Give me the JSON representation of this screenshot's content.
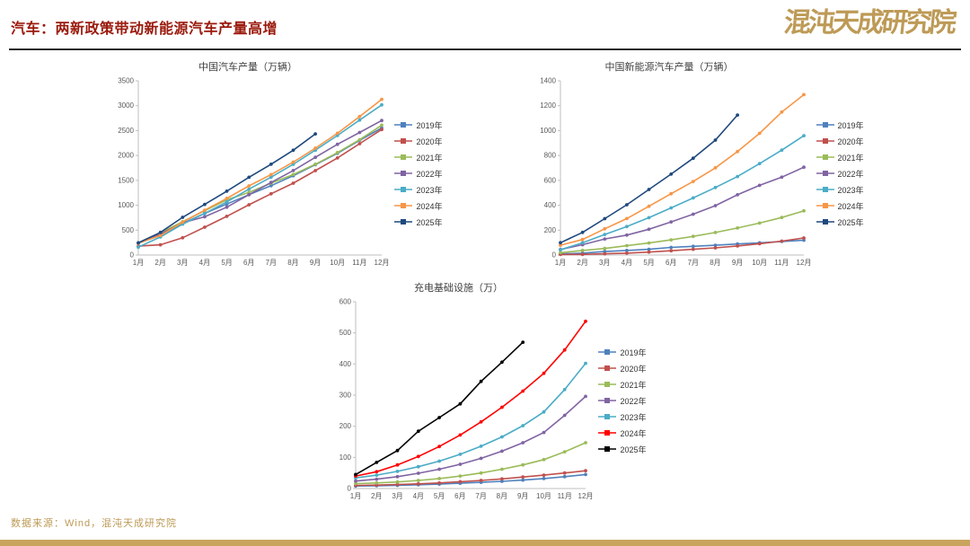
{
  "header": {
    "title": "汽车：两新政策带动新能源汽车产量高增",
    "logo": "混沌天成研究院"
  },
  "footer": {
    "source": "数据来源：Wind，混沌天成研究院"
  },
  "theme": {
    "title_red": "#9a1a0d",
    "accent_gold": "#bd9a56",
    "bottom_bar_gold": "#c9a45f"
  },
  "chart_data": [
    {
      "id": "china-auto-production",
      "type": "line",
      "title": "中国汽车产量（万辆）",
      "x": [
        "1月",
        "2月",
        "3月",
        "4月",
        "5月",
        "6月",
        "7月",
        "8月",
        "9月",
        "10月",
        "11月",
        "12月"
      ],
      "ylim": [
        0,
        3500
      ],
      "yticks": [
        0,
        500,
        1000,
        1500,
        2000,
        2500,
        3000,
        3500
      ],
      "grid": false,
      "legend_position": "right",
      "series": [
        {
          "name": "2019年",
          "color": "#4F81BD",
          "values": [
            236,
            395,
            633,
            838,
            1024,
            1213,
            1393,
            1593,
            1815,
            2044,
            2303,
            2553
          ]
        },
        {
          "name": "2020年",
          "color": "#C0504D",
          "values": [
            178,
            205,
            347,
            559,
            778,
            1011,
            1231,
            1443,
            1696,
            1951,
            2237,
            2523
          ]
        },
        {
          "name": "2021年",
          "color": "#9BBB59",
          "values": [
            238,
            445,
            669,
            892,
            1109,
            1257,
            1444,
            1617,
            1824,
            2058,
            2317,
            2608
          ]
        },
        {
          "name": "2022年",
          "color": "#8064A2",
          "values": [
            242,
            423,
            648,
            769,
            962,
            1212,
            1457,
            1697,
            1963,
            2224,
            2462,
            2702
          ]
        },
        {
          "name": "2023年",
          "color": "#4BACC6",
          "values": [
            159,
            362,
            621,
            835,
            1068,
            1325,
            1565,
            1822,
            2108,
            2401,
            2711,
            3016
          ]
        },
        {
          "name": "2024年",
          "color": "#F79646",
          "values": [
            241,
            391,
            660,
            901,
            1139,
            1389,
            1617,
            1867,
            2147,
            2446,
            2782,
            3128
          ]
        },
        {
          "name": "2025年",
          "color": "#1F497D",
          "values": [
            245,
            455,
            757,
            1018,
            1283,
            1562,
            1824,
            2106,
            2434
          ]
        }
      ]
    },
    {
      "id": "china-nev-production",
      "type": "line",
      "title": "中国新能源汽车产量（万辆）",
      "x": [
        "1月",
        "2月",
        "3月",
        "4月",
        "5月",
        "6月",
        "7月",
        "8月",
        "9月",
        "10月",
        "11月",
        "12月"
      ],
      "ylim": [
        0,
        1400
      ],
      "yticks": [
        0,
        200,
        400,
        600,
        800,
        1000,
        1200,
        1400
      ],
      "grid": false,
      "legend_position": "right",
      "series": [
        {
          "name": "2019年",
          "color": "#4F81BD",
          "values": [
            9,
            15,
            28,
            37,
            46,
            61,
            70,
            79,
            89,
            98,
            109,
            119
          ]
        },
        {
          "name": "2020年",
          "color": "#C0504D",
          "values": [
            4,
            5,
            10,
            15,
            24,
            35,
            46,
            58,
            73,
            91,
            112,
            137
          ]
        },
        {
          "name": "2021年",
          "color": "#9BBB59",
          "values": [
            19,
            37,
            53,
            75,
            97,
            122,
            150,
            181,
            217,
            257,
            302,
            355
          ]
        },
        {
          "name": "2022年",
          "color": "#8064A2",
          "values": [
            45,
            83,
            129,
            160,
            207,
            266,
            328,
            397,
            484,
            560,
            626,
            706
          ]
        },
        {
          "name": "2023年",
          "color": "#4BACC6",
          "values": [
            42,
            98,
            165,
            229,
            300,
            379,
            459,
            543,
            631,
            735,
            843,
            959
          ]
        },
        {
          "name": "2024年",
          "color": "#F79646",
          "values": [
            79,
            125,
            211,
            293,
            392,
            493,
            591,
            701,
            831,
            978,
            1149,
            1289
          ]
        },
        {
          "name": "2025年",
          "color": "#1F497D",
          "values": [
            99,
            182,
            292,
            404,
            527,
            650,
            778,
            924,
            1125
          ]
        }
      ]
    },
    {
      "id": "charging-infrastructure",
      "type": "line",
      "title": "充电基础设施（万）",
      "x": [
        "1月",
        "2月",
        "3月",
        "4月",
        "5月",
        "6月",
        "7月",
        "8月",
        "9月",
        "10月",
        "11月",
        "12月"
      ],
      "ylim": [
        0,
        600
      ],
      "yticks": [
        0,
        100,
        200,
        300,
        400,
        500,
        600
      ],
      "grid": false,
      "legend_position": "right",
      "series": [
        {
          "name": "2019年",
          "color": "#4F81BD",
          "values": [
            8,
            9,
            10,
            12,
            14,
            17,
            20,
            23,
            27,
            32,
            38,
            45
          ]
        },
        {
          "name": "2020年",
          "color": "#C0504D",
          "values": [
            10,
            11,
            13,
            15,
            18,
            22,
            26,
            31,
            37,
            43,
            50,
            57
          ]
        },
        {
          "name": "2021年",
          "color": "#9BBB59",
          "values": [
            16,
            18,
            21,
            26,
            32,
            40,
            50,
            62,
            76,
            93,
            118,
            147
          ]
        },
        {
          "name": "2022年",
          "color": "#8064A2",
          "values": [
            24,
            30,
            38,
            49,
            62,
            78,
            97,
            120,
            147,
            180,
            235,
            296
          ]
        },
        {
          "name": "2023年",
          "color": "#4BACC6",
          "values": [
            34,
            43,
            55,
            70,
            88,
            110,
            136,
            166,
            202,
            246,
            318,
            402
          ]
        },
        {
          "name": "2024年",
          "color": "#FF0000",
          "values": [
            40,
            54,
            76,
            103,
            135,
            172,
            214,
            261,
            313,
            370,
            445,
            537
          ]
        },
        {
          "name": "2025年",
          "color": "#000000",
          "values": [
            45,
            84,
            122,
            184,
            228,
            272,
            344,
            406,
            470
          ]
        }
      ]
    }
  ]
}
